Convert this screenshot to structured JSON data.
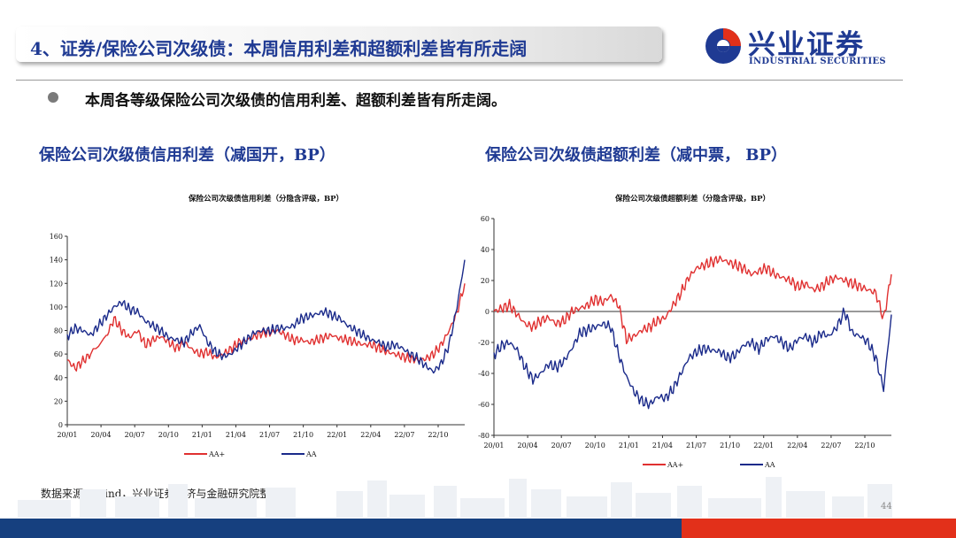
{
  "header": {
    "title": "4、证券/保险公司次级债：本周信用利差和超额利差皆有所走阔",
    "logo_cn": "兴业证券",
    "logo_en": "INDUSTRIAL SECURITIES"
  },
  "bullet": "本周各等级保险公司次级债的信用利差、超额利差皆有所走阔。",
  "left_subtitle": "保险公司次级债信用利差（减国开，BP）",
  "right_subtitle": "保险公司次级债超额利差（减中票， BP）",
  "source": "数据来源：Wind，兴业证券经济与金融研究院整理",
  "page_number": "44",
  "colors": {
    "navy": "#1f3a93",
    "aa_plus": "#e03030",
    "aa": "#1a2a8a",
    "bar_blue": "#16407f",
    "bar_red": "#e2301a"
  },
  "chart_data": [
    {
      "type": "line",
      "title": "保险公司次级债信用利差（分隐含评级，BP）",
      "xlabel": "",
      "ylabel": "",
      "ylim": [
        0,
        160
      ],
      "yticks": [
        "0",
        "20",
        "40",
        "60",
        "80",
        "100",
        "120",
        "140",
        "160"
      ],
      "xticks": [
        "20/01",
        "20/04",
        "20/07",
        "20/10",
        "21/01",
        "21/04",
        "21/07",
        "21/10",
        "22/01",
        "22/04",
        "22/07",
        "22/10"
      ],
      "legend": [
        "AA+",
        "AA"
      ],
      "legend_position": "bottom",
      "grid": false,
      "series": [
        {
          "name": "AA+",
          "color": "#e03030",
          "points": [
            [
              0,
              55
            ],
            [
              1,
              48
            ],
            [
              2,
              54
            ],
            [
              3,
              60
            ],
            [
              5,
              75
            ],
            [
              6,
              90
            ],
            [
              7,
              80
            ],
            [
              8,
              74
            ],
            [
              9,
              80
            ],
            [
              10,
              68
            ],
            [
              11,
              72
            ],
            [
              12,
              75
            ],
            [
              13,
              70
            ],
            [
              14,
              65
            ],
            [
              15,
              70
            ],
            [
              16,
              64
            ],
            [
              17,
              60
            ],
            [
              18,
              62
            ],
            [
              19,
              57
            ],
            [
              20,
              60
            ],
            [
              21,
              64
            ],
            [
              22,
              70
            ],
            [
              23,
              72
            ],
            [
              24,
              75
            ],
            [
              25,
              78
            ],
            [
              26,
              78
            ],
            [
              27,
              80
            ],
            [
              28,
              76
            ],
            [
              29,
              72
            ],
            [
              30,
              72
            ],
            [
              31,
              70
            ],
            [
              32,
              72
            ],
            [
              33,
              74
            ],
            [
              34,
              76
            ],
            [
              35,
              73
            ],
            [
              36,
              72
            ],
            [
              37,
              70
            ],
            [
              38,
              68
            ],
            [
              39,
              68
            ],
            [
              40,
              65
            ],
            [
              41,
              62
            ],
            [
              42,
              60
            ],
            [
              43,
              58
            ],
            [
              44,
              56
            ],
            [
              45,
              55
            ],
            [
              46,
              56
            ],
            [
              47,
              60
            ],
            [
              48,
              68
            ],
            [
              49,
              80
            ],
            [
              50,
              95
            ],
            [
              51,
              120
            ]
          ]
        },
        {
          "name": "AA",
          "color": "#1a2a8a",
          "points": [
            [
              0,
              75
            ],
            [
              1,
              82
            ],
            [
              2,
              80
            ],
            [
              3,
              76
            ],
            [
              4,
              84
            ],
            [
              5,
              92
            ],
            [
              6,
              100
            ],
            [
              7,
              104
            ],
            [
              8,
              98
            ],
            [
              9,
              96
            ],
            [
              10,
              88
            ],
            [
              11,
              84
            ],
            [
              12,
              80
            ],
            [
              13,
              74
            ],
            [
              14,
              72
            ],
            [
              15,
              70
            ],
            [
              16,
              78
            ],
            [
              17,
              84
            ],
            [
              18,
              70
            ],
            [
              19,
              62
            ],
            [
              20,
              58
            ],
            [
              21,
              60
            ],
            [
              22,
              66
            ],
            [
              23,
              72
            ],
            [
              24,
              78
            ],
            [
              25,
              80
            ],
            [
              26,
              80
            ],
            [
              27,
              82
            ],
            [
              28,
              82
            ],
            [
              29,
              84
            ],
            [
              30,
              90
            ],
            [
              31,
              92
            ],
            [
              32,
              94
            ],
            [
              33,
              96
            ],
            [
              34,
              93
            ],
            [
              35,
              90
            ],
            [
              36,
              84
            ],
            [
              37,
              80
            ],
            [
              38,
              76
            ],
            [
              39,
              72
            ],
            [
              40,
              70
            ],
            [
              41,
              66
            ],
            [
              42,
              68
            ],
            [
              43,
              65
            ],
            [
              44,
              60
            ],
            [
              45,
              56
            ],
            [
              46,
              50
            ],
            [
              47,
              45
            ],
            [
              48,
              52
            ],
            [
              49,
              68
            ],
            [
              50,
              100
            ],
            [
              51,
              140
            ]
          ]
        }
      ]
    },
    {
      "type": "line",
      "title": "保险公司次级债超额利差（分隐含评级，BP）",
      "xlabel": "",
      "ylabel": "",
      "ylim": [
        -80,
        60
      ],
      "yticks": [
        "-80",
        "-60",
        "-40",
        "-20",
        "0",
        "20",
        "40",
        "60"
      ],
      "xticks": [
        "20/01",
        "20/04",
        "20/07",
        "20/10",
        "21/01",
        "21/04",
        "21/07",
        "21/10",
        "22/01",
        "22/04",
        "22/07",
        "22/10"
      ],
      "legend": [
        "AA+",
        "AA"
      ],
      "legend_position": "bottom",
      "grid": false,
      "series": [
        {
          "name": "AA+",
          "color": "#e03030",
          "points": [
            [
              0,
              0
            ],
            [
              1,
              2
            ],
            [
              2,
              4
            ],
            [
              3,
              -2
            ],
            [
              4,
              -8
            ],
            [
              5,
              -10
            ],
            [
              6,
              -6
            ],
            [
              7,
              -4
            ],
            [
              8,
              -8
            ],
            [
              9,
              -6
            ],
            [
              10,
              0
            ],
            [
              11,
              2
            ],
            [
              12,
              4
            ],
            [
              13,
              8
            ],
            [
              14,
              6
            ],
            [
              15,
              10
            ],
            [
              16,
              4
            ],
            [
              17,
              -18
            ],
            [
              18,
              -16
            ],
            [
              19,
              -12
            ],
            [
              20,
              -10
            ],
            [
              21,
              -6
            ],
            [
              22,
              -4
            ],
            [
              23,
              4
            ],
            [
              24,
              12
            ],
            [
              25,
              22
            ],
            [
              26,
              28
            ],
            [
              27,
              30
            ],
            [
              28,
              32
            ],
            [
              29,
              34
            ],
            [
              30,
              32
            ],
            [
              31,
              30
            ],
            [
              32,
              28
            ],
            [
              33,
              24
            ],
            [
              34,
              26
            ],
            [
              35,
              28
            ],
            [
              36,
              24
            ],
            [
              37,
              22
            ],
            [
              38,
              20
            ],
            [
              39,
              16
            ],
            [
              40,
              18
            ],
            [
              41,
              14
            ],
            [
              42,
              16
            ],
            [
              43,
              20
            ],
            [
              44,
              22
            ],
            [
              45,
              20
            ],
            [
              46,
              18
            ],
            [
              47,
              16
            ],
            [
              48,
              14
            ],
            [
              49,
              12
            ],
            [
              50,
              -5
            ],
            [
              51,
              24
            ]
          ]
        },
        {
          "name": "AA",
          "color": "#1a2a8a",
          "points": [
            [
              0,
              -28
            ],
            [
              1,
              -22
            ],
            [
              2,
              -20
            ],
            [
              3,
              -25
            ],
            [
              4,
              -36
            ],
            [
              5,
              -44
            ],
            [
              6,
              -40
            ],
            [
              7,
              -34
            ],
            [
              8,
              -36
            ],
            [
              9,
              -32
            ],
            [
              10,
              -24
            ],
            [
              11,
              -14
            ],
            [
              12,
              -12
            ],
            [
              13,
              -10
            ],
            [
              14,
              -8
            ],
            [
              15,
              -10
            ],
            [
              16,
              -28
            ],
            [
              17,
              -42
            ],
            [
              18,
              -52
            ],
            [
              19,
              -58
            ],
            [
              20,
              -60
            ],
            [
              21,
              -55
            ],
            [
              22,
              -56
            ],
            [
              23,
              -50
            ],
            [
              24,
              -40
            ],
            [
              25,
              -30
            ],
            [
              26,
              -26
            ],
            [
              27,
              -24
            ],
            [
              28,
              -25
            ],
            [
              29,
              -26
            ],
            [
              30,
              -30
            ],
            [
              31,
              -28
            ],
            [
              32,
              -22
            ],
            [
              33,
              -20
            ],
            [
              34,
              -24
            ],
            [
              35,
              -18
            ],
            [
              36,
              -16
            ],
            [
              37,
              -20
            ],
            [
              38,
              -24
            ],
            [
              39,
              -18
            ],
            [
              40,
              -16
            ],
            [
              41,
              -20
            ],
            [
              42,
              -14
            ],
            [
              43,
              -16
            ],
            [
              44,
              -10
            ],
            [
              45,
              0
            ],
            [
              46,
              -14
            ],
            [
              47,
              -16
            ],
            [
              48,
              -20
            ],
            [
              49,
              -30
            ],
            [
              50,
              -50
            ],
            [
              51,
              -2
            ]
          ]
        }
      ]
    }
  ]
}
